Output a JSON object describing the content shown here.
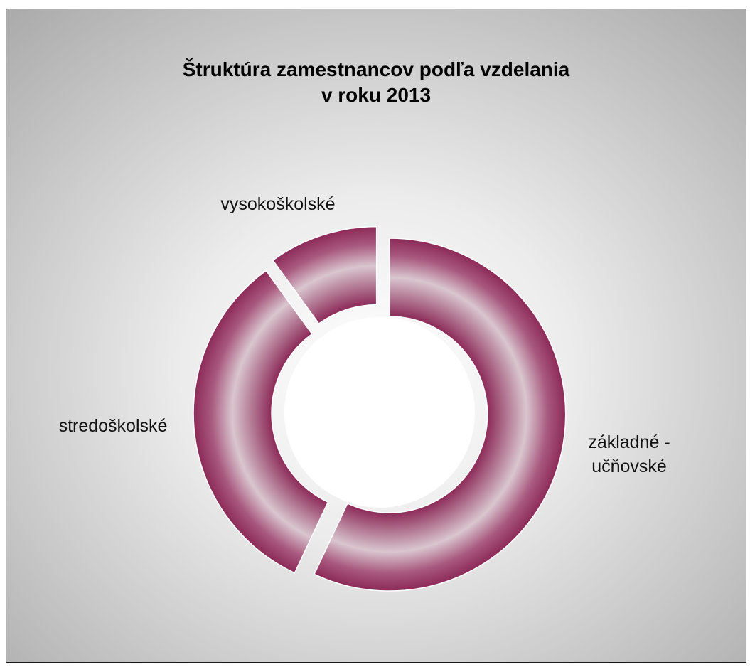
{
  "chart_data": {
    "type": "pie",
    "subtype": "doughnut",
    "title": "Štruktúra zamestnancov podľa vzdelania v roku 2013",
    "title_lines": [
      "Štruktúra zamestnancov podľa vzdelania",
      "v roku 2013"
    ],
    "slices": [
      {
        "label": "základné - učňovské",
        "label_lines": [
          "základné -",
          "učňovské"
        ],
        "percent": 57
      },
      {
        "label": "stredoškolské",
        "label_lines": [
          "stredoškolské"
        ],
        "percent": 33
      },
      {
        "label": "vysokoškolské",
        "label_lines": [
          "vysokoškolské"
        ],
        "percent": 10
      }
    ],
    "colors": {
      "slice_edge": "#8c2a58",
      "slice_mid": "#a8587e",
      "slice_center": "#d9c6cf",
      "background_outer": "#a9a9a9",
      "background_inner": "#ffffff",
      "border": "#1a1a1a"
    },
    "legend": "none"
  }
}
